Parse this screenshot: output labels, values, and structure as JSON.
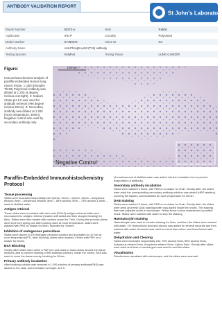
{
  "header": {
    "title": "ANTIBODY VALIDATION REPORT",
    "logo": "St John's Laboratory"
  },
  "table": {
    "rows": [
      [
        "Report Number",
        "90372-a",
        "Host",
        "Rabbit"
      ],
      [
        "Application",
        "IHC-P",
        "Clonality",
        "Polyclonal"
      ],
      [
        "Model Number",
        "STJ90372",
        "Clone ID",
        "NA"
      ],
      [
        "Antibody Name",
        "Anti-Phospho-p53 (T18) antibody"
      ],
      [
        "Testing Species",
        "HUMAN",
        "Testing Tissue",
        "LUNG CANCER"
      ]
    ]
  },
  "figure": {
    "label": "Figure:",
    "caption": "Immunohistochemical analysis of paraffin-embedded Human lung cancer tissue. 1: p53 (phospho Thr18) Polyclonal Antibody was diluted at 1:200 (4 degree Celsius,overnight). 2: Sodium citrate pH 6.0 was used for antibody retrieval (>98 degree Celsius,20min). 3: Secondary antibody was diluted at 1:200 (room temperature, 30min). Negative control was used by secondary antibody only.",
    "scale": "100 µm",
    "image_label": "Negative Control"
  },
  "protocol": {
    "title": "Paraffin-Embedded Immunohistochemistry Protocol",
    "left": [
      {
        "heading": "Tissue processing",
        "text": "Slides were incubated sequentially into Xylene; 15min – Xylene; 15min – Anhydrous ethanol; 5min – Anhydrous ethanol; 5min – 85% alcohol; 5min – 75% alcohol & 5min – wash in distilled water."
      },
      {
        "heading": "Antigen retrieval",
        "text": "These slides were incubated with citric acid (PH6.0) antigen retrieval buffer and microwaved for antigen retrieval (heated until boiled and then stopped heating) for 8min. Slides were then heated with medium power for 7min. During this process slides were kept from drying out. After cooling down at room temperature, slides were washed with PBS on shaker for 5min, repeated for 3 times."
      },
      {
        "heading": "Inhibition of endogenous peroxidase",
        "text": "Slides were placed in 3% Hydrogen peroxide solution and incubated for 10 min at room temperature(RT). After blocking, slides were washed 3 times with PBS on a shaker for 5mins."
      },
      {
        "heading": "BSA Blocking",
        "text": "Shortly after slides were dried, a PAP pen was used to draw circles around the tissue sections (and to prevent draining of the antibody solution). Inside the circles, BSA was used to cover the tissue evenly, blocking for 30min."
      },
      {
        "heading": "Primary antibody incubation",
        "text": "After blocking solution was removed a 1:200 solution of primary antibody(PBS) was added on the slide, and incubated overnight at 4°C."
      }
    ],
    "right_note": "(A small amount of distilled water was added into the incubation box to prevent evaporation of antibody).",
    "right": [
      {
        "heading": "Secondary antibody incubation",
        "text": "Slides were washed 3 times, with PBS on a shaker for 5min. Shortly after, the slides were dried the corresponding secondary antibody solution was added (HRP labelled), covering the tissues, and incubated at room temperature for 30min."
      },
      {
        "heading": "DAB staining",
        "text": "Slides were washed 3 times, with PBS on a shaker for 5min. Shortly after, the slides were dried and fresh DAB staining buffer was added inside the circles. The staining time was adjusted under a microscope. Yellow-brown colour represented a positive result. Slides were washed with water to stop the staining."
      },
      {
        "heading": "Haematoxylin staining",
        "text": "Haematoxylin was used to counter-staining for 3min, and then the slides were washed with water. 1% Hydrochloric acid and alcohol was added for several seconds and then washed with water. Ammonia was used to reveal blue colour, and then flushed with water."
      },
      {
        "heading": "Dehydration and Clearing",
        "text": "Slides were incubated sequentially into: 75% alcohol 5min, 85% alcohol 5min, Anhydrous ethanol 5min, Anhydrous ethanol 5min, Xylene 5min. Shortly after slides were dried and fresh or neutral gum was used to seal the slides."
      },
      {
        "heading": "Visualisation",
        "text": "Results were visualised with microscope, and the slides were scanned."
      }
    ]
  }
}
